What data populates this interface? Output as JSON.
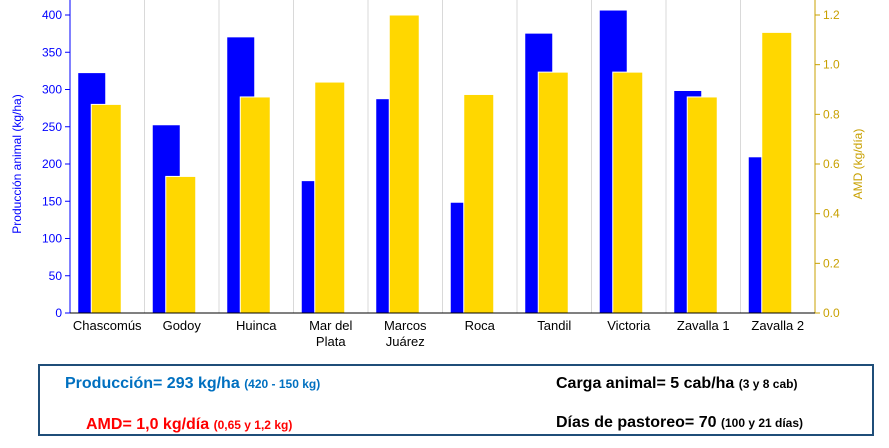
{
  "chart_data": {
    "type": "bar",
    "categories": [
      "Chascomús",
      "Godoy",
      "Huinca",
      "Mar del\nPlata",
      "Marcos\nJuárez",
      "Roca",
      "Tandil",
      "Victoria",
      "Zavalla 1",
      "Zavalla 2"
    ],
    "series": [
      {
        "name": "",
        "axis": "left",
        "color": "#0000ff",
        "values": [
          322,
          252,
          370,
          177,
          287,
          148,
          375,
          406,
          298,
          209
        ]
      },
      {
        "name": "",
        "axis": "right",
        "color": "#ffd700",
        "values": [
          0.84,
          0.55,
          0.87,
          0.93,
          1.2,
          0.88,
          0.97,
          0.97,
          0.87,
          1.13
        ]
      }
    ],
    "ylabel_left": "Producción animal (kg/ha)",
    "ylabel_right": "AMD (kg/día)",
    "ylim_left": [
      0,
      400
    ],
    "ylim_right": [
      0.0,
      1.2
    ],
    "yticks_left": [
      "0",
      "50",
      "100",
      "150",
      "200",
      "250",
      "300",
      "350",
      "400"
    ],
    "yticks_right": [
      "0.0",
      "0.2",
      "0.4",
      "0.6",
      "0.8",
      "1.0",
      "1.2"
    ],
    "grid": "vertical",
    "left_axis_color": "#0000ff",
    "right_axis_color": "#c8a000"
  },
  "summary": {
    "produccion_main": "Producción= 293 kg/ha",
    "produccion_range": "(420 - 150 kg)",
    "amd_main": "AMD= 1,0 kg/día",
    "amd_range": "(0,65 y 1,2 kg)",
    "carga_main": "Carga animal= 5 cab/ha",
    "carga_range": "(3 y 8 cab)",
    "dias_main": "Días de pastoreo= 70",
    "dias_range": "(100 y  21 días)"
  }
}
